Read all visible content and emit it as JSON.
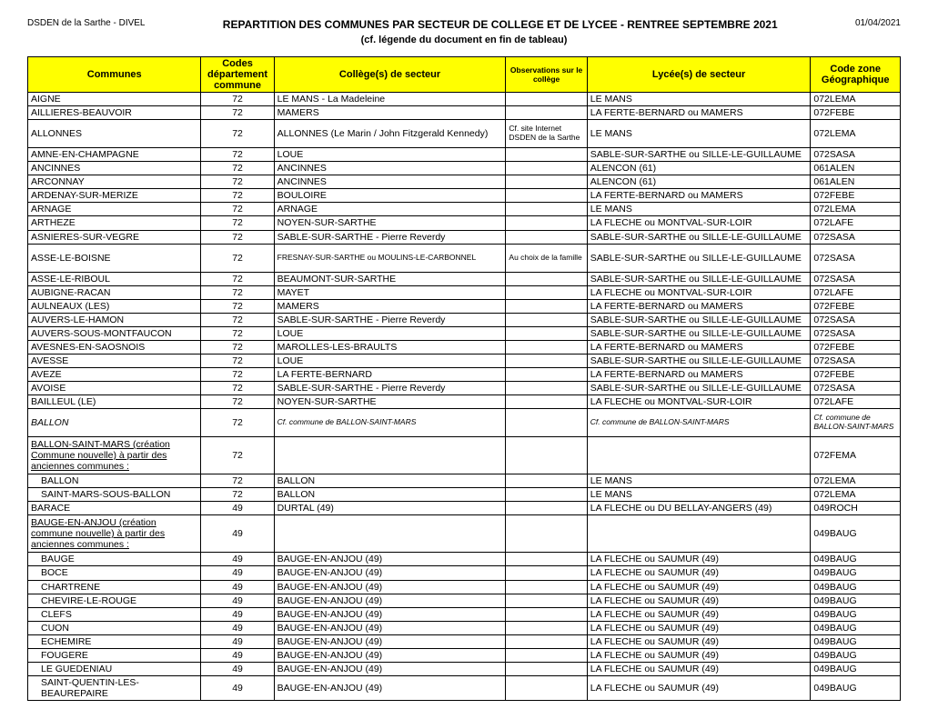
{
  "header": {
    "left": "DSDEN de la Sarthe - DIVEL",
    "title": "REPARTITION DES COMMUNES PAR SECTEUR DE COLLEGE ET DE LYCEE - RENTREE SEPTEMBRE 2021",
    "date": "01/04/2021",
    "subtitle": "(cf. légende du document en fin de tableau)"
  },
  "columns": {
    "communes": "Communes",
    "codes": "Codes département commune",
    "college": "Collège(s) de secteur",
    "observations": "Observations sur le collège",
    "lycee": "Lycée(s) de secteur",
    "zone": "Code zone Géographique"
  },
  "rows": [
    {
      "commune": "AIGNE",
      "code": "72",
      "college": "LE MANS - La Madeleine",
      "obs": "",
      "lycee": "LE MANS",
      "zone": "072LEMA"
    },
    {
      "commune": "AILLIERES-BEAUVOIR",
      "code": "72",
      "college": "MAMERS",
      "obs": "",
      "lycee": "LA FERTE-BERNARD ou MAMERS",
      "zone": "072FEBE"
    },
    {
      "commune": "ALLONNES",
      "code": "72",
      "college": "ALLONNES (Le Marin / John Fitzgerald Kennedy)",
      "obs": "Cf. site Internet DSDEN de la Sarthe",
      "lycee": "LE MANS",
      "zone": "072LEMA",
      "tall": true
    },
    {
      "commune": "AMNE-EN-CHAMPAGNE",
      "code": "72",
      "college": "LOUE",
      "obs": "",
      "lycee": "SABLE-SUR-SARTHE ou SILLE-LE-GUILLAUME",
      "zone": "072SASA"
    },
    {
      "commune": "ANCINNES",
      "code": "72",
      "college": "ANCINNES",
      "obs": "",
      "lycee": "ALENCON (61)",
      "zone": "061ALEN"
    },
    {
      "commune": "ARCONNAY",
      "code": "72",
      "college": "ANCINNES",
      "obs": "",
      "lycee": "ALENCON (61)",
      "zone": "061ALEN"
    },
    {
      "commune": "ARDENAY-SUR-MERIZE",
      "code": "72",
      "college": "BOULOIRE",
      "obs": "",
      "lycee": "LA FERTE-BERNARD ou MAMERS",
      "zone": "072FEBE"
    },
    {
      "commune": "ARNAGE",
      "code": "72",
      "college": "ARNAGE",
      "obs": "",
      "lycee": "LE MANS",
      "zone": "072LEMA"
    },
    {
      "commune": "ARTHEZE",
      "code": "72",
      "college": "NOYEN-SUR-SARTHE",
      "obs": "",
      "lycee": "LA FLECHE ou MONTVAL-SUR-LOIR",
      "zone": "072LAFE"
    },
    {
      "commune": "ASNIERES-SUR-VEGRE",
      "code": "72",
      "college": "SABLE-SUR-SARTHE - Pierre Reverdy",
      "obs": "",
      "lycee": "SABLE-SUR-SARTHE ou SILLE-LE-GUILLAUME",
      "zone": "072SASA"
    },
    {
      "commune": "ASSE-LE-BOISNE",
      "code": "72",
      "college": "FRESNAY-SUR-SARTHE ou MOULINS-LE-CARBONNEL",
      "obs": "Au choix de la famille",
      "lycee": "SABLE-SUR-SARTHE ou SILLE-LE-GUILLAUME",
      "zone": "072SASA",
      "smallcollege": true,
      "tall": true
    },
    {
      "commune": "ASSE-LE-RIBOUL",
      "code": "72",
      "college": "BEAUMONT-SUR-SARTHE",
      "obs": "",
      "lycee": "SABLE-SUR-SARTHE ou SILLE-LE-GUILLAUME",
      "zone": "072SASA"
    },
    {
      "commune": "AUBIGNE-RACAN",
      "code": "72",
      "college": "MAYET",
      "obs": "",
      "lycee": "LA FLECHE ou MONTVAL-SUR-LOIR",
      "zone": "072LAFE"
    },
    {
      "commune": "AULNEAUX (LES)",
      "code": "72",
      "college": "MAMERS",
      "obs": "",
      "lycee": "LA FERTE-BERNARD ou MAMERS",
      "zone": "072FEBE"
    },
    {
      "commune": "AUVERS-LE-HAMON",
      "code": "72",
      "college": "SABLE-SUR-SARTHE - Pierre Reverdy",
      "obs": "",
      "lycee": "SABLE-SUR-SARTHE ou SILLE-LE-GUILLAUME",
      "zone": "072SASA"
    },
    {
      "commune": "AUVERS-SOUS-MONTFAUCON",
      "code": "72",
      "college": "LOUE",
      "obs": "",
      "lycee": "SABLE-SUR-SARTHE ou SILLE-LE-GUILLAUME",
      "zone": "072SASA"
    },
    {
      "commune": "AVESNES-EN-SAOSNOIS",
      "code": "72",
      "college": "MAROLLES-LES-BRAULTS",
      "obs": "",
      "lycee": "LA FERTE-BERNARD ou MAMERS",
      "zone": "072FEBE"
    },
    {
      "commune": "AVESSE",
      "code": "72",
      "college": "LOUE",
      "obs": "",
      "lycee": "SABLE-SUR-SARTHE ou SILLE-LE-GUILLAUME",
      "zone": "072SASA"
    },
    {
      "commune": "AVEZE",
      "code": "72",
      "college": "LA FERTE-BERNARD",
      "obs": "",
      "lycee": "LA FERTE-BERNARD ou MAMERS",
      "zone": "072FEBE"
    },
    {
      "commune": "AVOISE",
      "code": "72",
      "college": "SABLE-SUR-SARTHE - Pierre Reverdy",
      "obs": "",
      "lycee": "SABLE-SUR-SARTHE ou SILLE-LE-GUILLAUME",
      "zone": "072SASA"
    },
    {
      "commune": "BAILLEUL (LE)",
      "code": "72",
      "college": "NOYEN-SUR-SARTHE",
      "obs": "",
      "lycee": "LA FLECHE ou MONTVAL-SUR-LOIR",
      "zone": "072LAFE"
    },
    {
      "commune": "BALLON",
      "code": "72",
      "college": "Cf. commune de BALLON-SAINT-MARS",
      "obs": "",
      "lycee": "Cf. commune de BALLON-SAINT-MARS",
      "zone": "Cf. commune de BALLON-SAINT-MARS",
      "italic": true,
      "tall": true,
      "smallfields": true
    },
    {
      "commune": "BALLON-SAINT-MARS (création Commune nouvelle) à partir des anciennes communes :",
      "code": "72",
      "college": "",
      "obs": "",
      "lycee": "",
      "zone": "072FEMA",
      "underline": true,
      "taller": true
    },
    {
      "commune": "BALLON",
      "code": "72",
      "college": "BALLON",
      "obs": "",
      "lycee": "LE MANS",
      "zone": "072LEMA",
      "indent": true
    },
    {
      "commune": "SAINT-MARS-SOUS-BALLON",
      "code": "72",
      "college": "BALLON",
      "obs": "",
      "lycee": "LE MANS",
      "zone": "072LEMA",
      "indent": true
    },
    {
      "commune": "BARACE",
      "code": "49",
      "college": "DURTAL (49)",
      "obs": "",
      "lycee": "LA FLECHE ou DU BELLAY-ANGERS (49)",
      "zone": "049ROCH"
    },
    {
      "commune": "BAUGE-EN-ANJOU (création commune nouvelle) à partir des anciennes communes :",
      "code": "49",
      "college": "",
      "obs": "",
      "lycee": "",
      "zone": "049BAUG",
      "underline": true,
      "taller": true
    },
    {
      "commune": "BAUGE",
      "code": "49",
      "college": "BAUGE-EN-ANJOU (49)",
      "obs": "",
      "lycee": "LA FLECHE ou SAUMUR (49)",
      "zone": "049BAUG",
      "indent": true
    },
    {
      "commune": "BOCE",
      "code": "49",
      "college": "BAUGE-EN-ANJOU (49)",
      "obs": "",
      "lycee": "LA FLECHE ou SAUMUR (49)",
      "zone": "049BAUG",
      "indent": true
    },
    {
      "commune": "CHARTRENE",
      "code": "49",
      "college": "BAUGE-EN-ANJOU (49)",
      "obs": "",
      "lycee": "LA FLECHE ou SAUMUR (49)",
      "zone": "049BAUG",
      "indent": true
    },
    {
      "commune": "CHEVIRE-LE-ROUGE",
      "code": "49",
      "college": "BAUGE-EN-ANJOU (49)",
      "obs": "",
      "lycee": "LA FLECHE ou SAUMUR (49)",
      "zone": "049BAUG",
      "indent": true
    },
    {
      "commune": "CLEFS",
      "code": "49",
      "college": "BAUGE-EN-ANJOU (49)",
      "obs": "",
      "lycee": "LA FLECHE ou SAUMUR (49)",
      "zone": "049BAUG",
      "indent": true
    },
    {
      "commune": "CUON",
      "code": "49",
      "college": "BAUGE-EN-ANJOU (49)",
      "obs": "",
      "lycee": "LA FLECHE ou SAUMUR (49)",
      "zone": "049BAUG",
      "indent": true
    },
    {
      "commune": "ECHEMIRE",
      "code": "49",
      "college": "BAUGE-EN-ANJOU (49)",
      "obs": "",
      "lycee": "LA FLECHE ou SAUMUR (49)",
      "zone": "049BAUG",
      "indent": true
    },
    {
      "commune": "FOUGERE",
      "code": "49",
      "college": "BAUGE-EN-ANJOU (49)",
      "obs": "",
      "lycee": "LA FLECHE ou SAUMUR (49)",
      "zone": "049BAUG",
      "indent": true
    },
    {
      "commune": "LE GUEDENIAU",
      "code": "49",
      "college": "BAUGE-EN-ANJOU (49)",
      "obs": "",
      "lycee": "LA FLECHE ou SAUMUR (49)",
      "zone": "049BAUG",
      "indent": true
    },
    {
      "commune": "SAINT-QUENTIN-LES-BEAUREPAIRE",
      "code": "49",
      "college": "BAUGE-EN-ANJOU (49)",
      "obs": "",
      "lycee": "LA FLECHE ou SAUMUR (49)",
      "zone": "049BAUG",
      "indent": true
    }
  ]
}
